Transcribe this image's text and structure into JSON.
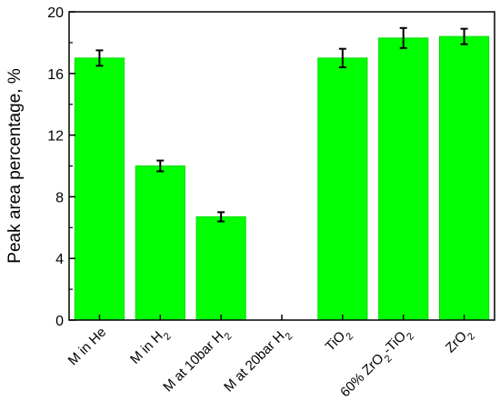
{
  "chart_data": {
    "type": "bar",
    "categories": [
      {
        "main": "M in He",
        "sub": "",
        "tail": ""
      },
      {
        "main": "M in H",
        "sub": "2",
        "tail": ""
      },
      {
        "main": "M at 10bar H",
        "sub": "2",
        "tail": ""
      },
      {
        "main": "M at 20bar H",
        "sub": "2",
        "tail": ""
      },
      {
        "main": "TiO",
        "sub": "2",
        "tail": ""
      },
      {
        "main": "60% ZrO",
        "sub": "2",
        "tail": "-TiO",
        "sub2": "2"
      },
      {
        "main": "ZrO",
        "sub": "2",
        "tail": ""
      }
    ],
    "values": [
      17.0,
      10.0,
      6.7,
      null,
      17.0,
      18.3,
      18.4
    ],
    "errors": [
      0.5,
      0.35,
      0.3,
      null,
      0.6,
      0.65,
      0.5
    ],
    "xlabel": "",
    "ylabel": "Peak area percentage, %",
    "ylim": [
      0,
      20
    ],
    "yticks": [
      "0",
      "4",
      "8",
      "12",
      "16",
      "20"
    ],
    "grid": false,
    "bar_color": "#00ff00",
    "bar_edge_color": "#00dd00",
    "error_color": "#000000"
  }
}
